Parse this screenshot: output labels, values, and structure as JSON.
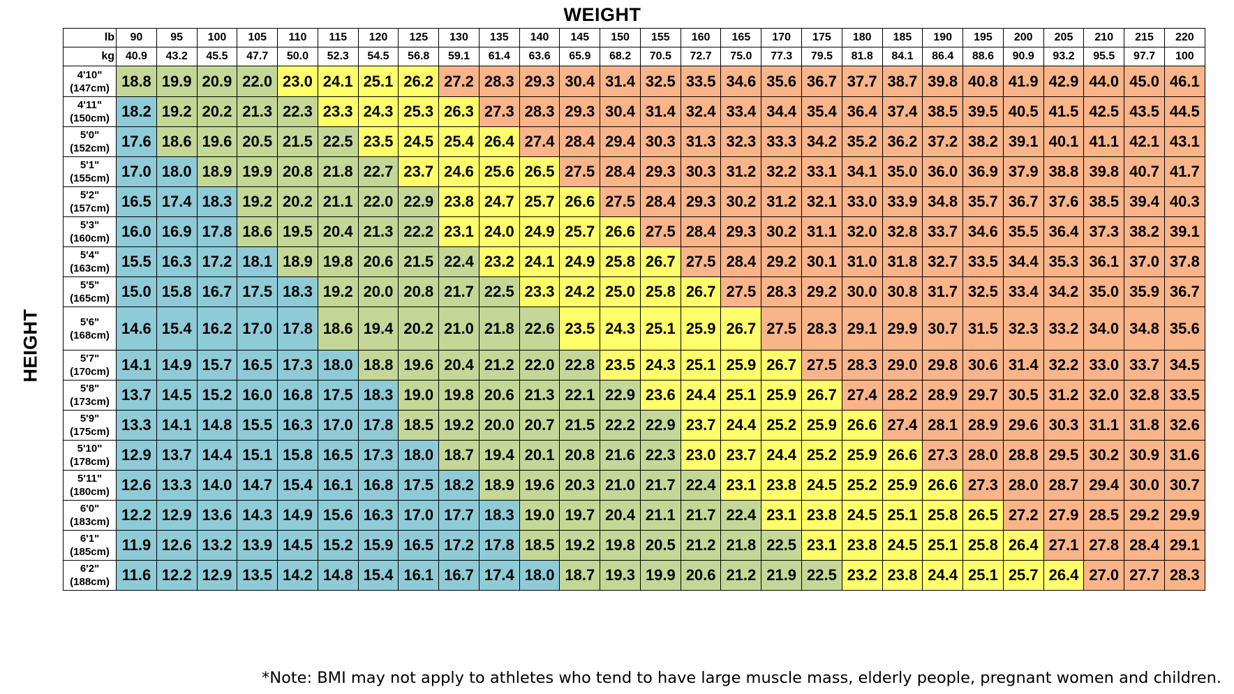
{
  "title": "WEIGHT",
  "y_title": "HEIGHT",
  "note": "*Note:  BMI may not apply to athletes who tend to have large muscle mass, elderly people, pregnant women and children.",
  "unit_lb": "lb",
  "unit_kg": "kg",
  "colors": {
    "underweight": "#8ecbd7",
    "normal": "#c4d797",
    "overweight": "#ffff6b",
    "obese": "#f9b48a"
  },
  "chart_data": {
    "type": "heatmap",
    "weights_lb": [
      "90",
      "95",
      "100",
      "105",
      "110",
      "115",
      "120",
      "125",
      "130",
      "135",
      "140",
      "145",
      "150",
      "155",
      "160",
      "165",
      "170",
      "175",
      "180",
      "185",
      "190",
      "195",
      "200",
      "205",
      "210",
      "215",
      "220"
    ],
    "weights_kg": [
      "40.9",
      "43.2",
      "45.5",
      "47.7",
      "50.0",
      "52.3",
      "54.5",
      "56.8",
      "59.1",
      "61.4",
      "63.6",
      "65.9",
      "68.2",
      "70.5",
      "72.7",
      "75.0",
      "77.3",
      "79.5",
      "81.8",
      "84.1",
      "86.4",
      "88.6",
      "90.9",
      "93.2",
      "95.5",
      "97.7",
      "100"
    ],
    "heights": [
      {
        "ft": "4'10\"",
        "cm": "(147cm)"
      },
      {
        "ft": "4'11\"",
        "cm": "(150cm)"
      },
      {
        "ft": "5'0\"",
        "cm": "(152cm)"
      },
      {
        "ft": "5'1\"",
        "cm": "(155cm)"
      },
      {
        "ft": "5'2\"",
        "cm": "(157cm)"
      },
      {
        "ft": "5'3\"",
        "cm": "(160cm)"
      },
      {
        "ft": "5'4\"",
        "cm": "(163cm)"
      },
      {
        "ft": "5'5\"",
        "cm": "(165cm)"
      },
      {
        "ft": "5'6\"",
        "cm": "(168cm)"
      },
      {
        "ft": "5'7\"",
        "cm": "(170cm)"
      },
      {
        "ft": "5'8\"",
        "cm": "(173cm)"
      },
      {
        "ft": "5'9\"",
        "cm": "(175cm)"
      },
      {
        "ft": "5'10\"",
        "cm": "(178cm)"
      },
      {
        "ft": "5'11\"",
        "cm": "(180cm)"
      },
      {
        "ft": "6'0\"",
        "cm": "(183cm)"
      },
      {
        "ft": "6'1\"",
        "cm": "(185cm)"
      },
      {
        "ft": "6'2\"",
        "cm": "(188cm)"
      }
    ],
    "values": [
      [
        "18.8",
        "19.9",
        "20.9",
        "22.0",
        "23.0",
        "24.1",
        "25.1",
        "26.2",
        "27.2",
        "28.3",
        "29.3",
        "30.4",
        "31.4",
        "32.5",
        "33.5",
        "34.6",
        "35.6",
        "36.7",
        "37.7",
        "38.7",
        "39.8",
        "40.8",
        "41.9",
        "42.9",
        "44.0",
        "45.0",
        "46.1"
      ],
      [
        "18.2",
        "19.2",
        "20.2",
        "21.3",
        "22.3",
        "23.3",
        "24.3",
        "25.3",
        "26.3",
        "27.3",
        "28.3",
        "29.3",
        "30.4",
        "31.4",
        "32.4",
        "33.4",
        "34.4",
        "35.4",
        "36.4",
        "37.4",
        "38.5",
        "39.5",
        "40.5",
        "41.5",
        "42.5",
        "43.5",
        "44.5"
      ],
      [
        "17.6",
        "18.6",
        "19.6",
        "20.5",
        "21.5",
        "22.5",
        "23.5",
        "24.5",
        "25.4",
        "26.4",
        "27.4",
        "28.4",
        "29.4",
        "30.3",
        "31.3",
        "32.3",
        "33.3",
        "34.2",
        "35.2",
        "36.2",
        "37.2",
        "38.2",
        "39.1",
        "40.1",
        "41.1",
        "42.1",
        "43.1"
      ],
      [
        "17.0",
        "18.0",
        "18.9",
        "19.9",
        "20.8",
        "21.8",
        "22.7",
        "23.7",
        "24.6",
        "25.6",
        "26.5",
        "27.5",
        "28.4",
        "29.3",
        "30.3",
        "31.2",
        "32.2",
        "33.1",
        "34.1",
        "35.0",
        "36.0",
        "36.9",
        "37.9",
        "38.8",
        "39.8",
        "40.7",
        "41.7"
      ],
      [
        "16.5",
        "17.4",
        "18.3",
        "19.2",
        "20.2",
        "21.1",
        "22.0",
        "22.9",
        "23.8",
        "24.7",
        "25.7",
        "26.6",
        "27.5",
        "28.4",
        "29.3",
        "30.2",
        "31.2",
        "32.1",
        "33.0",
        "33.9",
        "34.8",
        "35.7",
        "36.7",
        "37.6",
        "38.5",
        "39.4",
        "40.3"
      ],
      [
        "16.0",
        "16.9",
        "17.8",
        "18.6",
        "19.5",
        "20.4",
        "21.3",
        "22.2",
        "23.1",
        "24.0",
        "24.9",
        "25.7",
        "26.6",
        "27.5",
        "28.4",
        "29.3",
        "30.2",
        "31.1",
        "32.0",
        "32.8",
        "33.7",
        "34.6",
        "35.5",
        "36.4",
        "37.3",
        "38.2",
        "39.1"
      ],
      [
        "15.5",
        "16.3",
        "17.2",
        "18.1",
        "18.9",
        "19.8",
        "20.6",
        "21.5",
        "22.4",
        "23.2",
        "24.1",
        "24.9",
        "25.8",
        "26.7",
        "27.5",
        "28.4",
        "29.2",
        "30.1",
        "31.0",
        "31.8",
        "32.7",
        "33.5",
        "34.4",
        "35.3",
        "36.1",
        "37.0",
        "37.8"
      ],
      [
        "15.0",
        "15.8",
        "16.7",
        "17.5",
        "18.3",
        "19.2",
        "20.0",
        "20.8",
        "21.7",
        "22.5",
        "23.3",
        "24.2",
        "25.0",
        "25.8",
        "26.7",
        "27.5",
        "28.3",
        "29.2",
        "30.0",
        "30.8",
        "31.7",
        "32.5",
        "33.4",
        "34.2",
        "35.0",
        "35.9",
        "36.7"
      ],
      [
        "14.6",
        "15.4",
        "16.2",
        "17.0",
        "17.8",
        "18.6",
        "19.4",
        "20.2",
        "21.0",
        "21.8",
        "22.6",
        "23.5",
        "24.3",
        "25.1",
        "25.9",
        "26.7",
        "27.5",
        "28.3",
        "29.1",
        "29.9",
        "30.7",
        "31.5",
        "32.3",
        "33.2",
        "34.0",
        "34.8",
        "35.6"
      ],
      [
        "14.1",
        "14.9",
        "15.7",
        "16.5",
        "17.3",
        "18.0",
        "18.8",
        "19.6",
        "20.4",
        "21.2",
        "22.0",
        "22.8",
        "23.5",
        "24.3",
        "25.1",
        "25.9",
        "26.7",
        "27.5",
        "28.3",
        "29.0",
        "29.8",
        "30.6",
        "31.4",
        "32.2",
        "33.0",
        "33.7",
        "34.5"
      ],
      [
        "13.7",
        "14.5",
        "15.2",
        "16.0",
        "16.8",
        "17.5",
        "18.3",
        "19.0",
        "19.8",
        "20.6",
        "21.3",
        "22.1",
        "22.9",
        "23.6",
        "24.4",
        "25.1",
        "25.9",
        "26.7",
        "27.4",
        "28.2",
        "28.9",
        "29.7",
        "30.5",
        "31.2",
        "32.0",
        "32.8",
        "33.5"
      ],
      [
        "13.3",
        "14.1",
        "14.8",
        "15.5",
        "16.3",
        "17.0",
        "17.8",
        "18.5",
        "19.2",
        "20.0",
        "20.7",
        "21.5",
        "22.2",
        "22.9",
        "23.7",
        "24.4",
        "25.2",
        "25.9",
        "26.6",
        "27.4",
        "28.1",
        "28.9",
        "29.6",
        "30.3",
        "31.1",
        "31.8",
        "32.6"
      ],
      [
        "12.9",
        "13.7",
        "14.4",
        "15.1",
        "15.8",
        "16.5",
        "17.3",
        "18.0",
        "18.7",
        "19.4",
        "20.1",
        "20.8",
        "21.6",
        "22.3",
        "23.0",
        "23.7",
        "24.4",
        "25.2",
        "25.9",
        "26.6",
        "27.3",
        "28.0",
        "28.8",
        "29.5",
        "30.2",
        "30.9",
        "31.6"
      ],
      [
        "12.6",
        "13.3",
        "14.0",
        "14.7",
        "15.4",
        "16.1",
        "16.8",
        "17.5",
        "18.2",
        "18.9",
        "19.6",
        "20.3",
        "21.0",
        "21.7",
        "22.4",
        "23.1",
        "23.8",
        "24.5",
        "25.2",
        "25.9",
        "26.6",
        "27.3",
        "28.0",
        "28.7",
        "29.4",
        "30.0",
        "30.7"
      ],
      [
        "12.2",
        "12.9",
        "13.6",
        "14.3",
        "14.9",
        "15.6",
        "16.3",
        "17.0",
        "17.7",
        "18.3",
        "19.0",
        "19.7",
        "20.4",
        "21.1",
        "21.7",
        "22.4",
        "23.1",
        "23.8",
        "24.5",
        "25.1",
        "25.8",
        "26.5",
        "27.2",
        "27.9",
        "28.5",
        "29.2",
        "29.9"
      ],
      [
        "11.9",
        "12.6",
        "13.2",
        "13.9",
        "14.5",
        "15.2",
        "15.9",
        "16.5",
        "17.2",
        "17.8",
        "18.5",
        "19.2",
        "19.8",
        "20.5",
        "21.2",
        "21.8",
        "22.5",
        "23.1",
        "23.8",
        "24.5",
        "25.1",
        "25.8",
        "26.4",
        "27.1",
        "27.8",
        "28.4",
        "29.1"
      ],
      [
        "11.6",
        "12.2",
        "12.9",
        "13.5",
        "14.2",
        "14.8",
        "15.4",
        "16.1",
        "16.7",
        "17.4",
        "18.0",
        "18.7",
        "19.3",
        "19.9",
        "20.6",
        "21.2",
        "21.9",
        "22.5",
        "23.2",
        "23.8",
        "24.4",
        "25.1",
        "25.7",
        "26.4",
        "27.0",
        "27.7",
        "28.3"
      ]
    ],
    "categories": [
      [
        "normal",
        "normal",
        "normal",
        "normal",
        "over",
        "over",
        "over",
        "over",
        "obese",
        "obese",
        "obese",
        "obese",
        "obese",
        "obese",
        "obese",
        "obese",
        "obese",
        "obese",
        "obese",
        "obese",
        "obese",
        "obese",
        "obese",
        "obese",
        "obese",
        "obese",
        "obese"
      ],
      [
        "under",
        "normal",
        "normal",
        "normal",
        "normal",
        "over",
        "over",
        "over",
        "over",
        "obese",
        "obese",
        "obese",
        "obese",
        "obese",
        "obese",
        "obese",
        "obese",
        "obese",
        "obese",
        "obese",
        "obese",
        "obese",
        "obese",
        "obese",
        "obese",
        "obese",
        "obese"
      ],
      [
        "under",
        "normal",
        "normal",
        "normal",
        "normal",
        "normal",
        "over",
        "over",
        "over",
        "over",
        "obese",
        "obese",
        "obese",
        "obese",
        "obese",
        "obese",
        "obese",
        "obese",
        "obese",
        "obese",
        "obese",
        "obese",
        "obese",
        "obese",
        "obese",
        "obese",
        "obese"
      ],
      [
        "under",
        "under",
        "normal",
        "normal",
        "normal",
        "normal",
        "normal",
        "over",
        "over",
        "over",
        "over",
        "obese",
        "obese",
        "obese",
        "obese",
        "obese",
        "obese",
        "obese",
        "obese",
        "obese",
        "obese",
        "obese",
        "obese",
        "obese",
        "obese",
        "obese",
        "obese"
      ],
      [
        "under",
        "under",
        "under",
        "normal",
        "normal",
        "normal",
        "normal",
        "normal",
        "over",
        "over",
        "over",
        "over",
        "obese",
        "obese",
        "obese",
        "obese",
        "obese",
        "obese",
        "obese",
        "obese",
        "obese",
        "obese",
        "obese",
        "obese",
        "obese",
        "obese",
        "obese"
      ],
      [
        "under",
        "under",
        "under",
        "normal",
        "normal",
        "normal",
        "normal",
        "normal",
        "over",
        "over",
        "over",
        "over",
        "over",
        "obese",
        "obese",
        "obese",
        "obese",
        "obese",
        "obese",
        "obese",
        "obese",
        "obese",
        "obese",
        "obese",
        "obese",
        "obese",
        "obese"
      ],
      [
        "under",
        "under",
        "under",
        "under",
        "normal",
        "normal",
        "normal",
        "normal",
        "normal",
        "over",
        "over",
        "over",
        "over",
        "over",
        "obese",
        "obese",
        "obese",
        "obese",
        "obese",
        "obese",
        "obese",
        "obese",
        "obese",
        "obese",
        "obese",
        "obese",
        "obese"
      ],
      [
        "under",
        "under",
        "under",
        "under",
        "under",
        "normal",
        "normal",
        "normal",
        "normal",
        "normal",
        "over",
        "over",
        "over",
        "over",
        "over",
        "obese",
        "obese",
        "obese",
        "obese",
        "obese",
        "obese",
        "obese",
        "obese",
        "obese",
        "obese",
        "obese",
        "obese"
      ],
      [
        "under",
        "under",
        "under",
        "under",
        "under",
        "normal",
        "normal",
        "normal",
        "normal",
        "normal",
        "normal",
        "over",
        "over",
        "over",
        "over",
        "over",
        "obese",
        "obese",
        "obese",
        "obese",
        "obese",
        "obese",
        "obese",
        "obese",
        "obese",
        "obese",
        "obese"
      ],
      [
        "under",
        "under",
        "under",
        "under",
        "under",
        "under",
        "normal",
        "normal",
        "normal",
        "normal",
        "normal",
        "normal",
        "over",
        "over",
        "over",
        "over",
        "over",
        "obese",
        "obese",
        "obese",
        "obese",
        "obese",
        "obese",
        "obese",
        "obese",
        "obese",
        "obese"
      ],
      [
        "under",
        "under",
        "under",
        "under",
        "under",
        "under",
        "under",
        "normal",
        "normal",
        "normal",
        "normal",
        "normal",
        "normal",
        "over",
        "over",
        "over",
        "over",
        "over",
        "obese",
        "obese",
        "obese",
        "obese",
        "obese",
        "obese",
        "obese",
        "obese",
        "obese"
      ],
      [
        "under",
        "under",
        "under",
        "under",
        "under",
        "under",
        "under",
        "normal",
        "normal",
        "normal",
        "normal",
        "normal",
        "normal",
        "normal",
        "over",
        "over",
        "over",
        "over",
        "over",
        "obese",
        "obese",
        "obese",
        "obese",
        "obese",
        "obese",
        "obese",
        "obese"
      ],
      [
        "under",
        "under",
        "under",
        "under",
        "under",
        "under",
        "under",
        "under",
        "normal",
        "normal",
        "normal",
        "normal",
        "normal",
        "normal",
        "over",
        "over",
        "over",
        "over",
        "over",
        "over",
        "obese",
        "obese",
        "obese",
        "obese",
        "obese",
        "obese",
        "obese"
      ],
      [
        "under",
        "under",
        "under",
        "under",
        "under",
        "under",
        "under",
        "under",
        "under",
        "normal",
        "normal",
        "normal",
        "normal",
        "normal",
        "normal",
        "over",
        "over",
        "over",
        "over",
        "over",
        "over",
        "obese",
        "obese",
        "obese",
        "obese",
        "obese",
        "obese"
      ],
      [
        "under",
        "under",
        "under",
        "under",
        "under",
        "under",
        "under",
        "under",
        "under",
        "under",
        "normal",
        "normal",
        "normal",
        "normal",
        "normal",
        "normal",
        "over",
        "over",
        "over",
        "over",
        "over",
        "over",
        "obese",
        "obese",
        "obese",
        "obese",
        "obese"
      ],
      [
        "under",
        "under",
        "under",
        "under",
        "under",
        "under",
        "under",
        "under",
        "under",
        "under",
        "normal",
        "normal",
        "normal",
        "normal",
        "normal",
        "normal",
        "normal",
        "over",
        "over",
        "over",
        "over",
        "over",
        "over",
        "obese",
        "obese",
        "obese",
        "obese"
      ],
      [
        "under",
        "under",
        "under",
        "under",
        "under",
        "under",
        "under",
        "under",
        "under",
        "under",
        "under",
        "normal",
        "normal",
        "normal",
        "normal",
        "normal",
        "normal",
        "normal",
        "over",
        "over",
        "over",
        "over",
        "over",
        "over",
        "obese",
        "obese",
        "obese"
      ]
    ]
  }
}
